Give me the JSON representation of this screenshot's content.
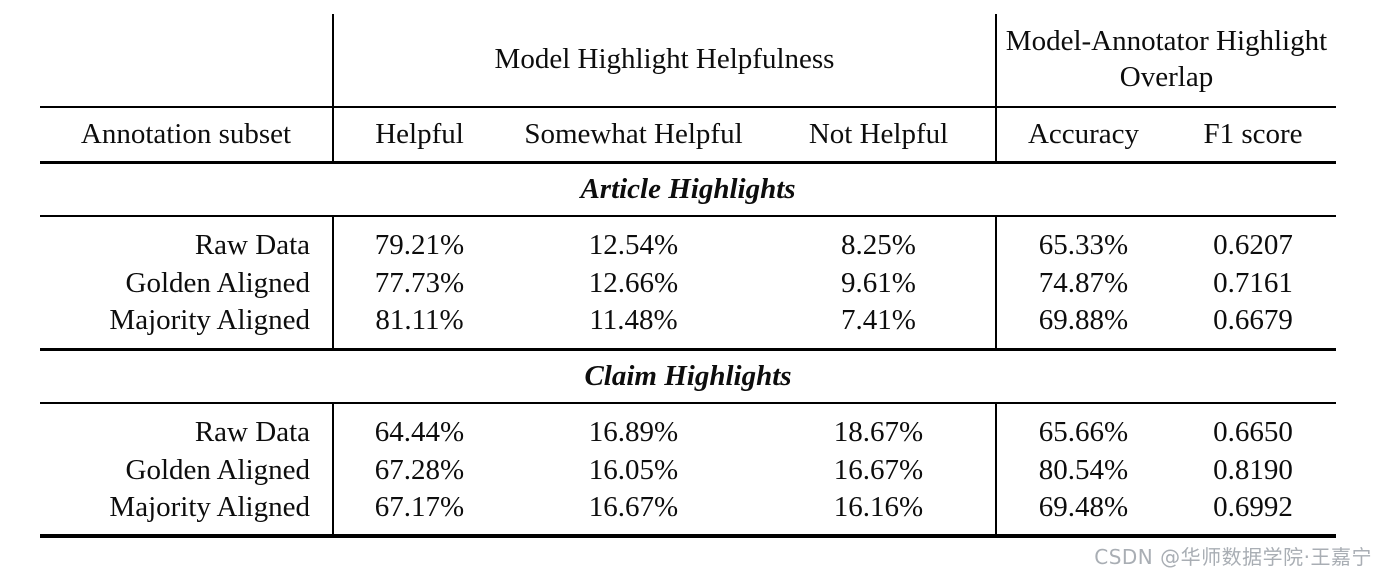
{
  "table": {
    "group_headers": [
      {
        "label": "",
        "span": 1
      },
      {
        "label": "Model Highlight Helpfulness",
        "span": 3
      },
      {
        "label": "Model-Annotator Highlight Overlap",
        "span": 2
      }
    ],
    "columns": [
      "Annotation subset",
      "Helpful",
      "Somewhat Helpful",
      "Not Helpful",
      "Accuracy",
      "F1 score"
    ],
    "sections": [
      {
        "title": "Article Highlights",
        "rows": [
          {
            "label": "Raw Data",
            "values": [
              "79.21%",
              "12.54%",
              "8.25%",
              "65.33%",
              "0.6207"
            ]
          },
          {
            "label": "Golden Aligned",
            "values": [
              "77.73%",
              "12.66%",
              "9.61%",
              "74.87%",
              "0.7161"
            ]
          },
          {
            "label": "Majority Aligned",
            "values": [
              "81.11%",
              "11.48%",
              "7.41%",
              "69.88%",
              "0.6679"
            ]
          }
        ]
      },
      {
        "title": "Claim Highlights",
        "rows": [
          {
            "label": "Raw Data",
            "values": [
              "64.44%",
              "16.89%",
              "18.67%",
              "65.66%",
              "0.6650"
            ]
          },
          {
            "label": "Golden Aligned",
            "values": [
              "67.28%",
              "16.05%",
              "16.67%",
              "80.54%",
              "0.8190"
            ]
          },
          {
            "label": "Majority Aligned",
            "values": [
              "67.17%",
              "16.67%",
              "16.16%",
              "69.48%",
              "0.6992"
            ]
          }
        ]
      }
    ],
    "rule_color": "#000000"
  },
  "watermark": {
    "text": "CSDN @华师数据学院·王嘉宁",
    "color": "#a9aeb4"
  }
}
